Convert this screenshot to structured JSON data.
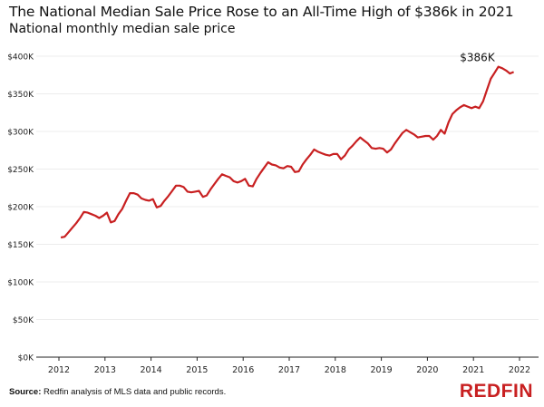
{
  "header": {
    "title": "The National Median Sale Price Rose to an All-Time High of $386k in 2021",
    "subtitle": "National monthly median sale price"
  },
  "footer": {
    "source_label": "Source:",
    "source_text": "Redfin analysis of MLS data and public records.",
    "logo_text": "REDFIN"
  },
  "chart_data": {
    "type": "line",
    "title": "The National Median Sale Price Rose to an All-Time High of $386k in 2021",
    "subtitle": "National monthly median sale price",
    "xlabel": "",
    "ylabel": "",
    "ylim": [
      0,
      400
    ],
    "xlim": [
      "2011-09",
      "2022-04"
    ],
    "y_unit": "thousand USD",
    "y_ticks": [
      0,
      50,
      100,
      150,
      200,
      250,
      300,
      350,
      400
    ],
    "y_tick_labels": [
      "$0K",
      "$50K",
      "$100K",
      "$150K",
      "$200K",
      "$250K",
      "$300K",
      "$350K",
      "$400K"
    ],
    "x_ticks": [
      2012,
      2013,
      2014,
      2015,
      2016,
      2017,
      2018,
      2019,
      2020,
      2021,
      2022
    ],
    "x_tick_labels": [
      "2012",
      "2013",
      "2014",
      "2015",
      "2016",
      "2017",
      "2018",
      "2019",
      "2020",
      "2021",
      "2022"
    ],
    "grid": "horizontal",
    "line_color": "#c82021",
    "start_month": "2012-01",
    "series": [
      {
        "values": [
          159,
          160,
          166,
          172,
          178,
          185,
          193,
          192,
          190,
          188,
          185,
          188,
          192,
          179,
          181,
          190,
          197,
          208,
          218,
          218,
          216,
          211,
          209,
          208,
          210,
          199,
          201,
          208,
          214,
          221,
          228,
          228,
          226,
          220,
          219,
          220,
          221,
          213,
          215,
          223,
          230,
          237,
          243,
          241,
          239,
          234,
          232,
          234,
          237,
          228,
          227,
          237,
          245,
          252,
          259,
          256,
          255,
          252,
          251,
          254,
          253,
          246,
          247,
          256,
          263,
          269,
          276,
          273,
          271,
          269,
          268,
          270,
          270,
          263,
          268,
          276,
          281,
          287,
          292,
          288,
          284,
          278,
          277,
          278,
          277,
          272,
          276,
          284,
          291,
          298,
          302,
          299,
          296,
          292,
          293,
          294,
          294,
          289,
          294,
          302,
          297,
          312,
          323,
          328,
          332,
          335,
          333,
          331,
          333,
          331,
          340,
          355,
          370,
          378,
          386,
          384,
          381,
          377,
          379
        ]
      }
    ],
    "annotations": [
      {
        "text": "$386K",
        "month": "2021-07",
        "value": 386
      }
    ]
  }
}
